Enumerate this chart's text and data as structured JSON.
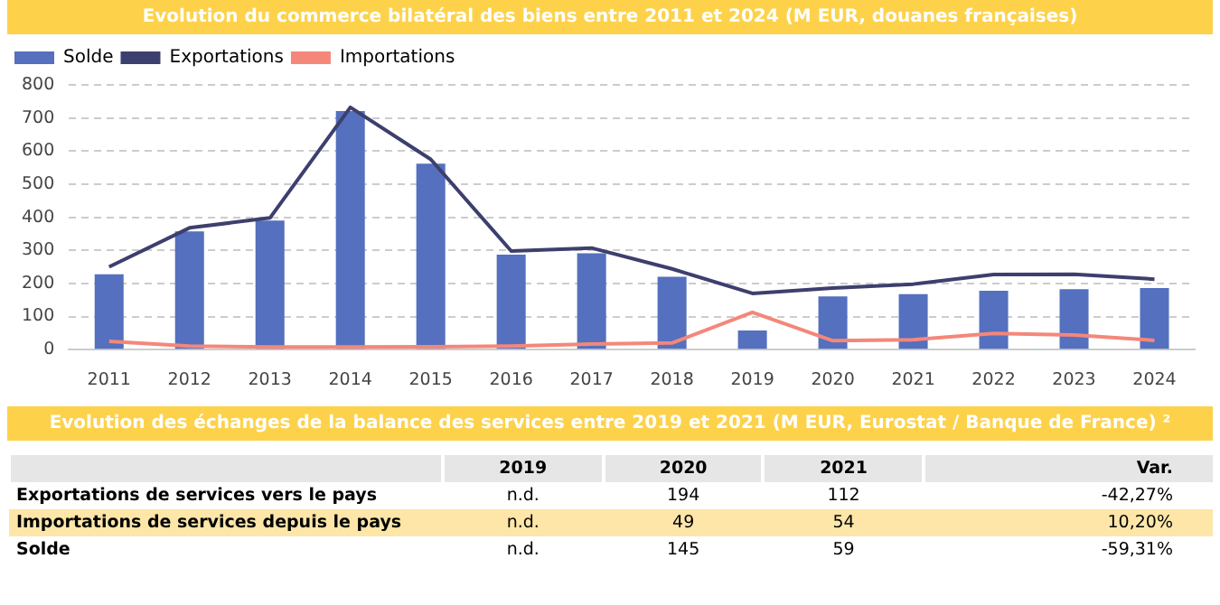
{
  "chart_data": [
    {
      "type": "bar",
      "title": "Evolution du commerce bilatéral des biens entre 2011 et 2024 (M EUR, douanes françaises)",
      "categories": [
        "2011",
        "2012",
        "2013",
        "2014",
        "2015",
        "2016",
        "2017",
        "2018",
        "2019",
        "2020",
        "2021",
        "2022",
        "2023",
        "2024"
      ],
      "series": [
        {
          "name": "Solde",
          "type": "bar",
          "color": "#5470be",
          "values": [
            228,
            357,
            390,
            721,
            562,
            287,
            291,
            220,
            58,
            161,
            168,
            178,
            183,
            186
          ]
        },
        {
          "name": "Exportations",
          "type": "line",
          "color": "#3d3f6e",
          "values": [
            250,
            368,
            398,
            732,
            575,
            298,
            307,
            244,
            170,
            186,
            198,
            227,
            228,
            213
          ]
        },
        {
          "name": "Importations",
          "type": "line",
          "color": "#f4877a",
          "values": [
            25,
            11,
            8,
            8,
            9,
            11,
            17,
            20,
            113,
            27,
            30,
            49,
            44,
            28
          ]
        }
      ],
      "ylim": [
        0,
        800
      ],
      "yticks": [
        0,
        100,
        200,
        300,
        400,
        500,
        600,
        700,
        800
      ],
      "grid": "y",
      "legend": "top left",
      "marker": "none",
      "line_style": "solid"
    },
    {
      "type": "other",
      "title": "Evolution des échanges de la balance des services entre 2019 et 2021 (M EUR, Eurostat / Banque de France) ²",
      "categories": [
        null,
        "2019",
        "2020",
        "2021",
        "Var."
      ],
      "y_categories": [
        "Exportations de services vers le pays",
        "Importations de services depuis le pays",
        "Solde"
      ],
      "cell_labels": [
        [
          "n.d.",
          "194",
          "112",
          "-42,27%"
        ],
        [
          "n.d.",
          "49",
          "54",
          "10,20%"
        ],
        [
          "n.d.",
          "145",
          "59",
          "-59,31%"
        ]
      ]
    }
  ]
}
